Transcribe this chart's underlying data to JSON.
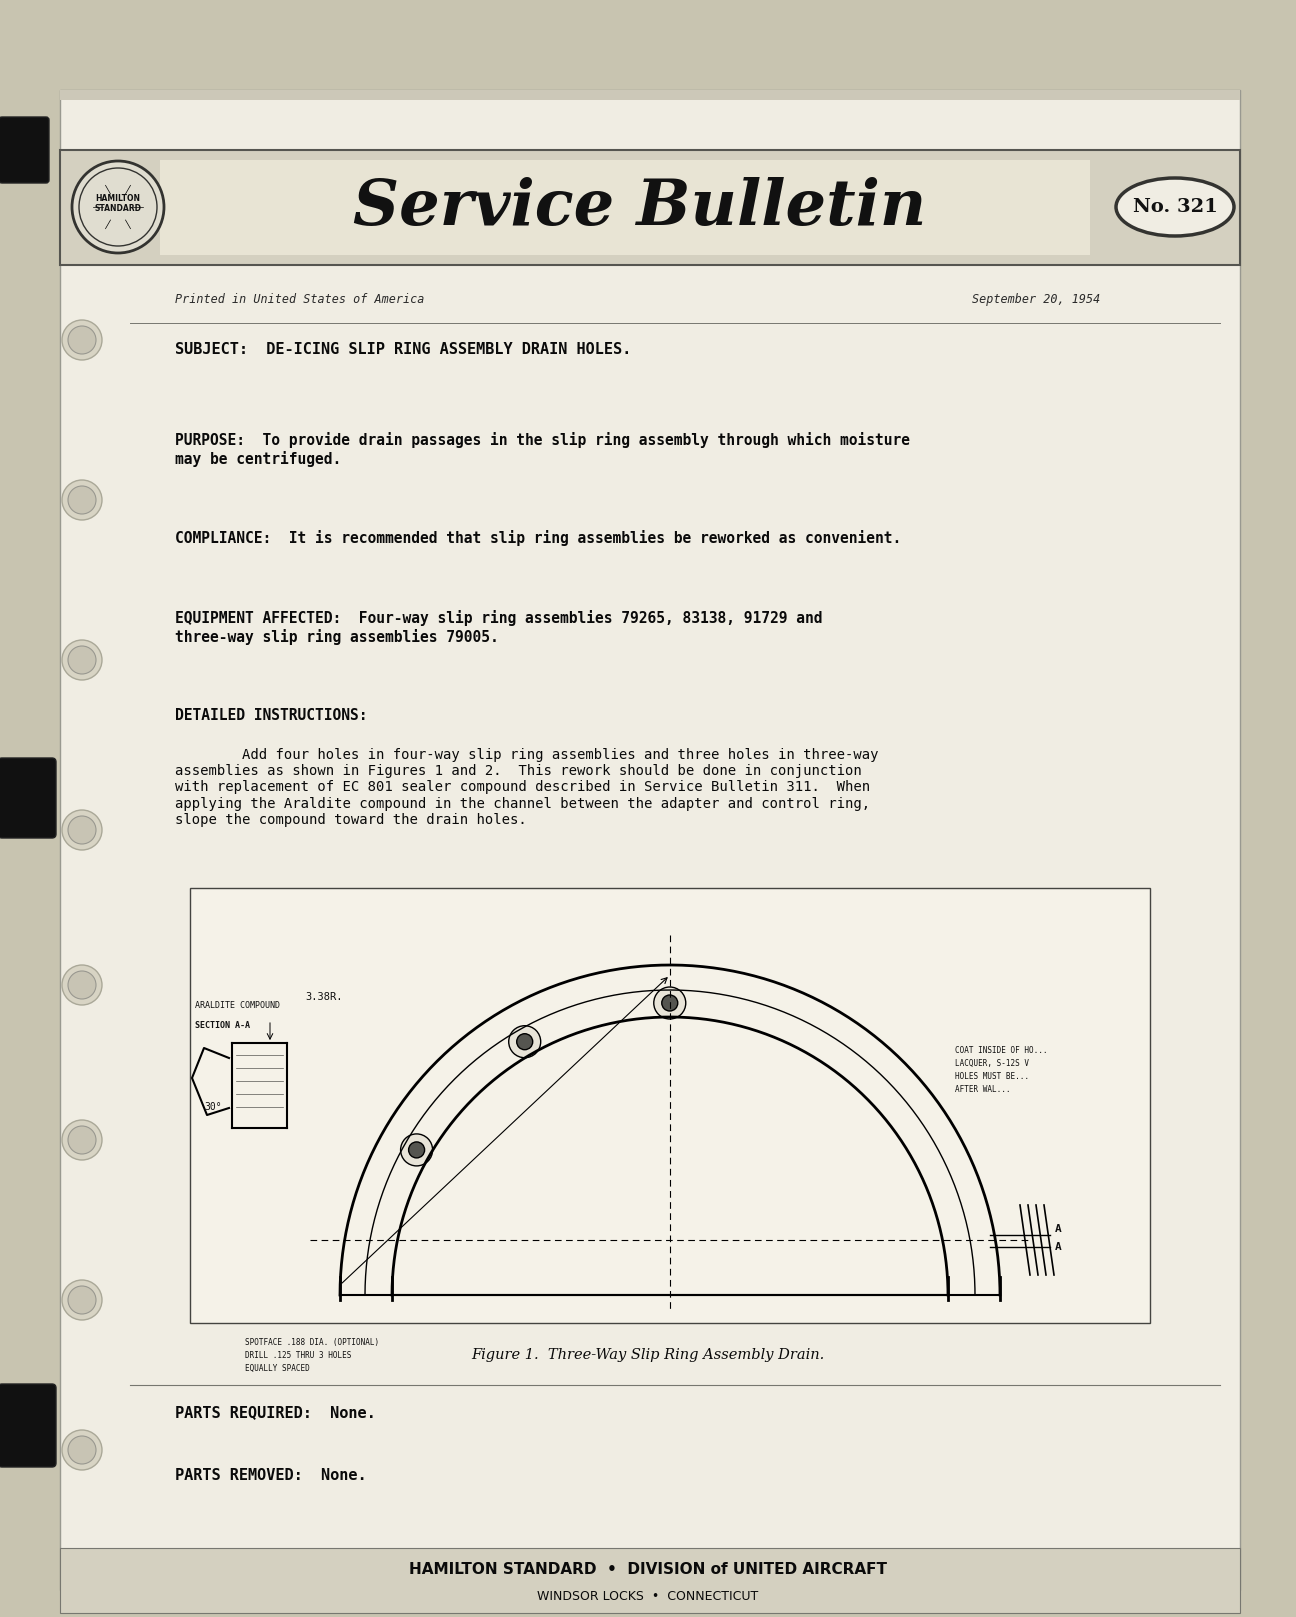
{
  "bg_color": "#c8c4b0",
  "page_bg": "#f0ede3",
  "header_bg": "#d4d0c0",
  "bulletin_number": "No. 321",
  "date": "September 20, 1954",
  "printed_text": "Printed in United States of America",
  "subject_line": "SUBJECT:  DE-ICING SLIP RING ASSEMBLY DRAIN HOLES.",
  "purpose_label": "PURPOSE:",
  "purpose_text": "  To provide drain passages in the slip ring assembly through which moisture\nmay be centrifuged.",
  "compliance_label": "COMPLIANCE:",
  "compliance_text": "  It is recommended that slip ring assemblies be reworked as convenient.",
  "equipment_label": "EQUIPMENT AFFECTED:",
  "equipment_text": "  Four-way slip ring assemblies 79265, 83138, 91729 and\nthree-way slip ring assemblies 79005.",
  "detailed_label": "DETAILED INSTRUCTIONS:",
  "detailed_text": "        Add four holes in four-way slip ring assemblies and three holes in three-way\nassemblies as shown in Figures 1 and 2.  This rework should be done in conjunction\nwith replacement of EC 801 sealer compound described in Service Bulletin 311.  When\napplying the Araldite compound in the channel between the adapter and control ring,\nslope the compound toward the drain holes.",
  "figure_caption": "Figure 1.  Three-Way Slip Ring Assembly Drain.",
  "parts_required": "PARTS REQUIRED:  None.",
  "parts_removed": "PARTS REMOVED:  None.",
  "footer_text": "HAMILTON STANDARD  •  DIVISION of UNITED AIRCRAFT",
  "footer_sub": "WINDSOR LOCKS  •  CONNECTICUT",
  "text_color": "#1a1a1a",
  "service_bulletin_script": "Service Bulletin"
}
